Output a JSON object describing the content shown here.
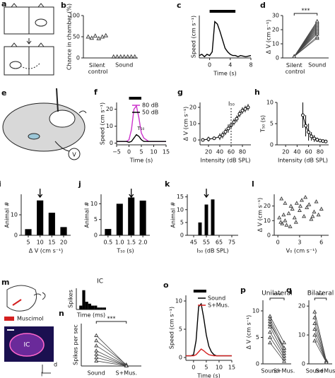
{
  "chart_data": [
    {
      "panel": "b",
      "type": "dot",
      "ylabel": "Chance in chamber (%)",
      "categories": [
        "Silent control",
        "Sound"
      ],
      "values": [
        [
          50,
          47,
          52,
          46,
          50,
          53
        ],
        [
          3,
          3,
          3,
          3,
          3,
          3,
          3
        ]
      ],
      "color": "#444444",
      "ylim": [
        0,
        100
      ],
      "yticks": [
        0,
        50,
        100
      ]
    },
    {
      "panel": "c",
      "type": "line",
      "xlabel": "Time (s)",
      "ylabel": "Speed (cm s⁻¹)",
      "xlim": [
        -2,
        8
      ],
      "xticks": [
        0,
        4,
        8
      ],
      "ylim": [
        0,
        35
      ],
      "yticks": [],
      "stim": [
        0,
        5
      ],
      "series": [
        {
          "color": "#000000",
          "x": [
            -2,
            -1.5,
            -1,
            -0.5,
            0,
            0.5,
            1,
            1.5,
            2,
            2.5,
            3,
            3.5,
            4,
            4.5,
            5,
            5.5,
            6,
            7,
            8
          ],
          "values": [
            2,
            3,
            1,
            3,
            2,
            5,
            30,
            28,
            22,
            15,
            8,
            5,
            3,
            2,
            2,
            1,
            2,
            1,
            2
          ]
        }
      ]
    },
    {
      "panel": "d",
      "type": "paired",
      "ylabel": "Δ V (cm s⁻¹)",
      "categories": [
        "Silent control",
        "Sound"
      ],
      "annotation": "***",
      "color": "#444444",
      "ylim": [
        0,
        30
      ],
      "yticks": [
        0,
        10,
        20,
        30
      ],
      "pairs": [
        [
          1,
          14
        ],
        [
          1,
          15
        ],
        [
          1,
          17
        ],
        [
          1,
          18
        ],
        [
          1,
          19
        ],
        [
          1,
          20
        ],
        [
          1,
          21
        ],
        [
          1,
          22
        ],
        [
          1,
          23
        ],
        [
          1,
          24
        ],
        [
          1,
          25
        ],
        [
          1,
          26
        ]
      ]
    },
    {
      "panel": "f",
      "type": "line",
      "xlabel": "Time (s)",
      "ylabel": "Speed (cm s⁻¹)",
      "annotation": "T₅₀",
      "legend": "upper right",
      "stim": [
        0,
        5
      ],
      "xlim": [
        -5,
        15
      ],
      "xticks": [
        {
          "value": -5,
          "label": "−5"
        },
        0,
        5,
        10,
        15
      ],
      "ylim": [
        -1,
        24
      ],
      "yticks": [
        0,
        10,
        20
      ],
      "series": [
        {
          "name": "80 dB",
          "color": "#cc33cc",
          "x": [
            -5,
            -4,
            -3,
            -2,
            -1,
            0,
            1,
            2,
            3,
            4,
            5,
            6,
            7,
            8,
            9,
            10,
            11,
            12,
            13,
            14,
            15
          ],
          "values": [
            1,
            1,
            1,
            1,
            1,
            2,
            8,
            20,
            22,
            15,
            6,
            3,
            2,
            1,
            1,
            1,
            1,
            1,
            1,
            1,
            1
          ]
        },
        {
          "name": "50 dB",
          "color": "#000000",
          "x": [
            -5,
            -4,
            -3,
            -2,
            -1,
            0,
            1,
            2,
            3,
            4,
            5,
            6,
            7,
            8,
            9,
            10,
            11,
            12,
            13,
            14,
            15
          ],
          "values": [
            1,
            1,
            1,
            1,
            1,
            0.5,
            1,
            3,
            5,
            4,
            2,
            1,
            1,
            1,
            1,
            1,
            1,
            1,
            1,
            1,
            1
          ]
        }
      ]
    },
    {
      "panel": "g",
      "type": "line",
      "xlabel": "Intensity (dB SPL)",
      "ylabel": "Δ V (cm s⁻¹)",
      "annotation": "I₅₀",
      "marker": 60,
      "xlim": [
        5,
        95
      ],
      "xticks": [
        20,
        40,
        60,
        80
      ],
      "ylim": [
        -3,
        23
      ],
      "yticks": [
        0,
        10,
        20
      ],
      "series": [
        {
          "color": "#000000",
          "x": [
            10,
            20,
            30,
            40,
            45,
            50,
            55,
            60,
            65,
            70,
            75,
            80,
            85,
            90
          ],
          "values": [
            0,
            0.5,
            1,
            2,
            3,
            5,
            7,
            9,
            11,
            13,
            16,
            18,
            19,
            20
          ],
          "errors": [
            1,
            1.5,
            1,
            2,
            2,
            2,
            2.5,
            2,
            2,
            2,
            2,
            2,
            2,
            2
          ]
        }
      ]
    },
    {
      "panel": "h",
      "type": "line",
      "xlabel": "Intensity (dB SPL)",
      "ylabel": "T₅₀ (s)",
      "xlim": [
        5,
        95
      ],
      "xticks": [
        20,
        40,
        60,
        80
      ],
      "ylim": [
        0,
        10
      ],
      "yticks": [
        0,
        5,
        10
      ],
      "series": [
        {
          "color": "#000000",
          "x": [
            50,
            55,
            60,
            65,
            70,
            75,
            80,
            85,
            90
          ],
          "values": [
            7,
            4.5,
            3,
            2,
            1.5,
            1.2,
            1,
            0.9,
            0.8
          ],
          "errors": [
            3,
            2.5,
            2,
            1,
            0.8,
            0.5,
            0.4,
            0.3,
            0.3
          ]
        }
      ]
    },
    {
      "panel": "i",
      "type": "bar",
      "xlabel": "Δ V (cm s⁻¹)",
      "ylabel": "Animal #",
      "color": "#000000",
      "arrow": 10,
      "x": [
        5,
        10,
        15,
        20
      ],
      "values": [
        3,
        17,
        11,
        4
      ],
      "xlim": [
        2,
        23
      ],
      "xticks": [
        5,
        10,
        15,
        20
      ],
      "ylim": [
        0,
        20
      ],
      "yticks": [
        0,
        10
      ]
    },
    {
      "panel": "j",
      "type": "bar",
      "xlabel": "T₅₀ (s)",
      "ylabel": "Animal #",
      "color": "#000000",
      "arrow": 1.5,
      "x": [
        0.5,
        1,
        1.5,
        2
      ],
      "values": [
        2,
        10,
        12,
        11
      ],
      "xlim": [
        0.2,
        2.3
      ],
      "xticks": [
        0.5,
        {
          "value": 1,
          "label": "1.0"
        },
        1.5,
        {
          "value": 2,
          "label": "2.0"
        }
      ],
      "ylim": [
        0,
        13
      ],
      "yticks": [
        0,
        5,
        10
      ]
    },
    {
      "panel": "k",
      "type": "bar",
      "xlabel": "I₅₀ (dB SPL)",
      "ylabel": "Animal #",
      "color": "#000000",
      "arrow": 55,
      "x": [
        50,
        55,
        60
      ],
      "values": [
        5,
        12,
        14
      ],
      "xlim": [
        40,
        80
      ],
      "xticks": [
        45,
        55,
        65,
        75
      ],
      "ylim": [
        0,
        16
      ],
      "yticks": [
        0,
        5,
        10,
        15
      ]
    },
    {
      "panel": "l",
      "type": "scatter",
      "xlabel": "V₀ (cm s⁻¹)",
      "ylabel": "Δ V (cm s⁻¹)",
      "color": "#444444",
      "xlim": [
        -0.5,
        7
      ],
      "xticks": [
        0,
        3,
        6
      ],
      "ylim": [
        0,
        28
      ],
      "yticks": [
        0,
        10,
        20
      ],
      "x": [
        0.2,
        0.4,
        0.6,
        0.8,
        1,
        1.2,
        1.5,
        1.8,
        2,
        2.3,
        2.6,
        3,
        3.3,
        3.6,
        4,
        4.3,
        4.6,
        5,
        5.3,
        5.6,
        6,
        1,
        2.5,
        3.8,
        4.8,
        0.5,
        1.7,
        3.1
      ],
      "y": [
        12,
        9,
        8,
        14,
        10,
        7,
        15,
        20,
        18,
        12,
        22,
        17,
        24,
        13,
        19,
        21,
        11,
        16,
        23,
        14,
        18,
        22,
        9,
        26,
        13,
        25,
        6,
        20
      ]
    },
    {
      "type": "hist",
      "title": "IC",
      "xlabel": "Time (ms)",
      "ylabel": "Spikes",
      "color": "#000000",
      "bins": [
        0,
        5,
        10,
        15,
        20,
        25,
        30,
        35,
        40,
        45,
        50
      ],
      "counts": [
        0,
        2,
        10,
        4,
        3,
        2,
        2,
        1,
        1,
        1
      ],
      "xlim": [
        0,
        50
      ],
      "xticks": [],
      "ylim": [
        0,
        11
      ],
      "yticks": []
    },
    {
      "panel": "n",
      "type": "paired",
      "ylabel": "Spikes per sec",
      "categories": [
        "Sound",
        "S+Mus."
      ],
      "annotation": "***",
      "color": "#444444",
      "ylim": [
        0,
        250
      ],
      "yticks": [],
      "pairs": [
        [
          180,
          5
        ],
        [
          150,
          8
        ],
        [
          120,
          5
        ],
        [
          90,
          3
        ],
        [
          70,
          2
        ],
        [
          50,
          2
        ],
        [
          30,
          1
        ]
      ]
    },
    {
      "panel": "o",
      "type": "line",
      "xlabel": "Time (s)",
      "ylabel": "Speed (cm s⁻¹)",
      "legend": "upper right",
      "stim": [
        0,
        5
      ],
      "xlim": [
        -3,
        15
      ],
      "xticks": [
        0,
        5,
        10,
        15
      ],
      "ylim": [
        -0.5,
        11
      ],
      "yticks": [
        0,
        5,
        10
      ],
      "series": [
        {
          "name": "Sound",
          "color": "#000000",
          "x": [
            -3,
            -2,
            -1,
            0,
            1,
            2,
            3,
            4,
            5,
            6,
            7,
            8,
            9,
            10,
            11,
            12,
            13,
            14,
            15
          ],
          "values": [
            0.3,
            0.3,
            0.3,
            0.5,
            3,
            9,
            9.5,
            7,
            4,
            2,
            1,
            0.5,
            0.3,
            0.3,
            0.3,
            0.3,
            0.3,
            0.3,
            0.3
          ]
        },
        {
          "name": "S+Mus.",
          "color": "#d42020",
          "x": [
            -3,
            -2,
            -1,
            0,
            1,
            2,
            3,
            4,
            5,
            6,
            7,
            8,
            9,
            10,
            11,
            12,
            13,
            14,
            15
          ],
          "values": [
            0.3,
            0.3,
            0.3,
            0.3,
            0.5,
            1,
            1.5,
            1.2,
            0.8,
            0.5,
            0.4,
            0.3,
            0.3,
            0.3,
            0.3,
            0.3,
            0.3,
            0.3,
            0.3
          ]
        }
      ]
    },
    {
      "panel": "p",
      "type": "paired",
      "title": "Unilateral",
      "ylabel": "Δ V (cm s⁻¹)",
      "categories": [
        "Sound",
        "S+Mus."
      ],
      "annotation": "***",
      "color": "#444444",
      "ylim": [
        0,
        12
      ],
      "yticks": [
        0,
        5,
        10
      ],
      "pairs": [
        [
          9,
          4
        ],
        [
          8.5,
          3
        ],
        [
          8,
          2.5
        ],
        [
          7.5,
          3
        ],
        [
          7,
          2
        ],
        [
          6,
          1.5
        ],
        [
          5,
          1
        ],
        [
          4,
          0.5
        ]
      ]
    },
    {
      "panel": "q",
      "type": "paired",
      "title": "Bilateral",
      "categories": [
        "Sound",
        "S+Mus."
      ],
      "annotation": "**",
      "color": "#444444",
      "ylim": [
        0,
        22
      ],
      "yticks": [
        0,
        10,
        20
      ],
      "pairs": [
        [
          18,
          1
        ],
        [
          16,
          1
        ],
        [
          14,
          0.5
        ],
        [
          12,
          0.5
        ],
        [
          10,
          0.5
        ],
        [
          8,
          0.5
        ]
      ]
    }
  ],
  "diagrams": [
    {
      "panel": "a"
    },
    {
      "panel": "e",
      "labels": [
        "V"
      ]
    },
    {
      "panel": "m",
      "labels": [
        "Muscimol",
        "IC",
        "d",
        "l"
      ]
    }
  ]
}
